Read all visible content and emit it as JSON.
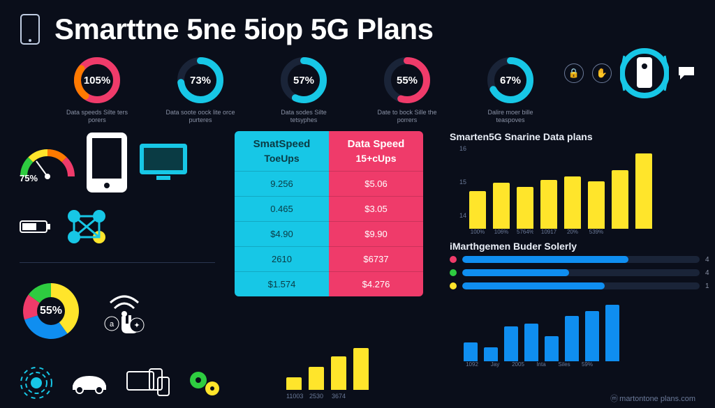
{
  "colors": {
    "bg": "#0a0e1a",
    "cyan": "#17c7e6",
    "pink": "#ef3b6a",
    "yellow": "#ffe52b",
    "blue": "#0f8ef0",
    "green": "#2ecc40",
    "orange": "#ff7a00",
    "muted": "#8a92a6",
    "track": "#1a2438"
  },
  "title": "Smarttne 5ne 5iop 5G Plans",
  "donuts": [
    {
      "pct": 105,
      "ring": "#ef3b6a",
      "ring2": "#ff7a00",
      "caption": "Data speeds Silte ters porers"
    },
    {
      "pct": 73,
      "ring": "#17c7e6",
      "caption": "Data soote oock lite orce purteres"
    },
    {
      "pct": 57,
      "ring": "#17c7e6",
      "caption": "Data sodes Silte tetsyphes"
    },
    {
      "pct": 55,
      "ring": "#ef3b6a",
      "caption": "Date to bock Sille the porrers"
    },
    {
      "pct": 67,
      "ring": "#17c7e6",
      "caption": "Dalire moer bille teaspoves"
    }
  ],
  "gauge": {
    "pct": 75,
    "segments": [
      "#2ecc40",
      "#ffe52b",
      "#ff7a00",
      "#ef3b6a"
    ]
  },
  "pie": {
    "pct": 55,
    "slices": [
      {
        "color": "#ffe52b",
        "frac": 0.4
      },
      {
        "color": "#0f8ef0",
        "frac": 0.3
      },
      {
        "color": "#ef3b6a",
        "frac": 0.15
      },
      {
        "color": "#2ecc40",
        "frac": 0.15
      }
    ]
  },
  "compare": {
    "left": {
      "head": "SmatSpeed",
      "sub": "ToeUps",
      "rows": [
        "9.256",
        "0.465",
        "$4.90",
        "2610",
        "$1.574"
      ]
    },
    "right": {
      "head": "Data Speed",
      "sub": "15+cUps",
      "rows": [
        "$5.06",
        "$3.05",
        "$9.90",
        "$6737",
        "$4.276"
      ]
    }
  },
  "bar_chart": {
    "title": "Smarten5G Snarine Data plans",
    "yticks": [
      "16",
      "15",
      "14"
    ],
    "bars": [
      45,
      55,
      50,
      58,
      62,
      56,
      70,
      90
    ],
    "color": "#ffe52b",
    "xlabels": [
      "100%",
      "106%",
      "5764%",
      "10917",
      "20%",
      "539%"
    ]
  },
  "hbars": {
    "title": "iMarthgemen Buder Solerly",
    "rows": [
      {
        "dot": "#ef3b6a",
        "fill": "#0f8ef0",
        "val": 70,
        "lab": "4"
      },
      {
        "dot": "#2ecc40",
        "fill": "#0f8ef0",
        "val": 45,
        "lab": "4"
      },
      {
        "dot": "#ffe52b",
        "fill": "#0f8ef0",
        "val": 60,
        "lab": "1"
      }
    ]
  },
  "small_bars": {
    "bars": [
      30,
      22,
      55,
      60,
      40,
      72,
      80,
      90
    ],
    "color": "#0f8ef0",
    "xlabels": [
      "1092",
      "Jay",
      "2005",
      "Inta",
      "Siles",
      "59%"
    ]
  },
  "mini_bars": {
    "bars": [
      30,
      55,
      80,
      100
    ],
    "color": "#ffe52b",
    "xlabels": [
      "11003",
      "2530",
      "3674"
    ]
  },
  "footer": "martontone plans.com"
}
